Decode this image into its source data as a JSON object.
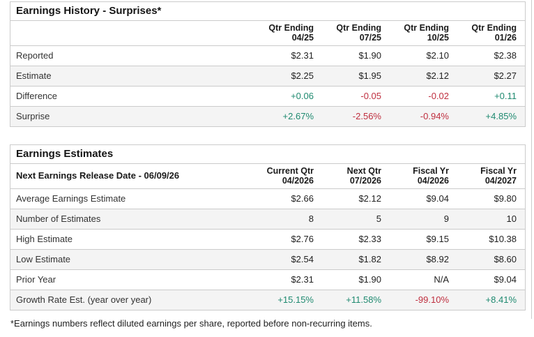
{
  "colors": {
    "positive": "#1f8a70",
    "negative": "#bf2f3f",
    "border": "#cbcbcb",
    "stripe": "#f4f4f4"
  },
  "page": {
    "footnote": "*Earnings numbers reflect diluted earnings per share, reported before non-recurring items."
  },
  "earnings_history": {
    "title": "Earnings History - Surprises*",
    "release_label": "",
    "columns": [
      {
        "line1": "Qtr Ending",
        "line2": "04/25"
      },
      {
        "line1": "Qtr Ending",
        "line2": "07/25"
      },
      {
        "line1": "Qtr Ending",
        "line2": "10/25"
      },
      {
        "line1": "Qtr Ending",
        "line2": "01/26"
      }
    ],
    "rows": [
      {
        "label": "Reported",
        "values": [
          "$2.31",
          "$1.90",
          "$2.10",
          "$2.38"
        ],
        "tones": [
          "",
          "",
          "",
          ""
        ]
      },
      {
        "label": "Estimate",
        "values": [
          "$2.25",
          "$1.95",
          "$2.12",
          "$2.27"
        ],
        "tones": [
          "",
          "",
          "",
          ""
        ]
      },
      {
        "label": "Difference",
        "values": [
          "+0.06",
          "-0.05",
          "-0.02",
          "+0.11"
        ],
        "tones": [
          "pos",
          "neg",
          "neg",
          "pos"
        ]
      },
      {
        "label": "Surprise",
        "values": [
          "+2.67%",
          "-2.56%",
          "-0.94%",
          "+4.85%"
        ],
        "tones": [
          "pos",
          "neg",
          "neg",
          "pos"
        ]
      }
    ]
  },
  "earnings_estimates": {
    "title": "Earnings Estimates",
    "release_label": "Next Earnings Release Date - 06/09/26",
    "columns": [
      {
        "line1": "Current Qtr",
        "line2": "04/2026"
      },
      {
        "line1": "Next Qtr",
        "line2": "07/2026"
      },
      {
        "line1": "Fiscal Yr",
        "line2": "04/2026"
      },
      {
        "line1": "Fiscal Yr",
        "line2": "04/2027"
      }
    ],
    "rows": [
      {
        "label": "Average Earnings Estimate",
        "values": [
          "$2.66",
          "$2.12",
          "$9.04",
          "$9.80"
        ],
        "tones": [
          "",
          "",
          "",
          ""
        ]
      },
      {
        "label": "Number of Estimates",
        "values": [
          "8",
          "5",
          "9",
          "10"
        ],
        "tones": [
          "",
          "",
          "",
          ""
        ]
      },
      {
        "label": "High Estimate",
        "values": [
          "$2.76",
          "$2.33",
          "$9.15",
          "$10.38"
        ],
        "tones": [
          "",
          "",
          "",
          ""
        ]
      },
      {
        "label": "Low Estimate",
        "values": [
          "$2.54",
          "$1.82",
          "$8.92",
          "$8.60"
        ],
        "tones": [
          "",
          "",
          "",
          ""
        ]
      },
      {
        "label": "Prior Year",
        "values": [
          "$2.31",
          "$1.90",
          "N/A",
          "$9.04"
        ],
        "tones": [
          "",
          "",
          "",
          ""
        ]
      },
      {
        "label": "Growth Rate Est. (year over year)",
        "values": [
          "+15.15%",
          "+11.58%",
          "-99.10%",
          "+8.41%"
        ],
        "tones": [
          "pos",
          "pos",
          "neg",
          "pos"
        ]
      }
    ]
  }
}
